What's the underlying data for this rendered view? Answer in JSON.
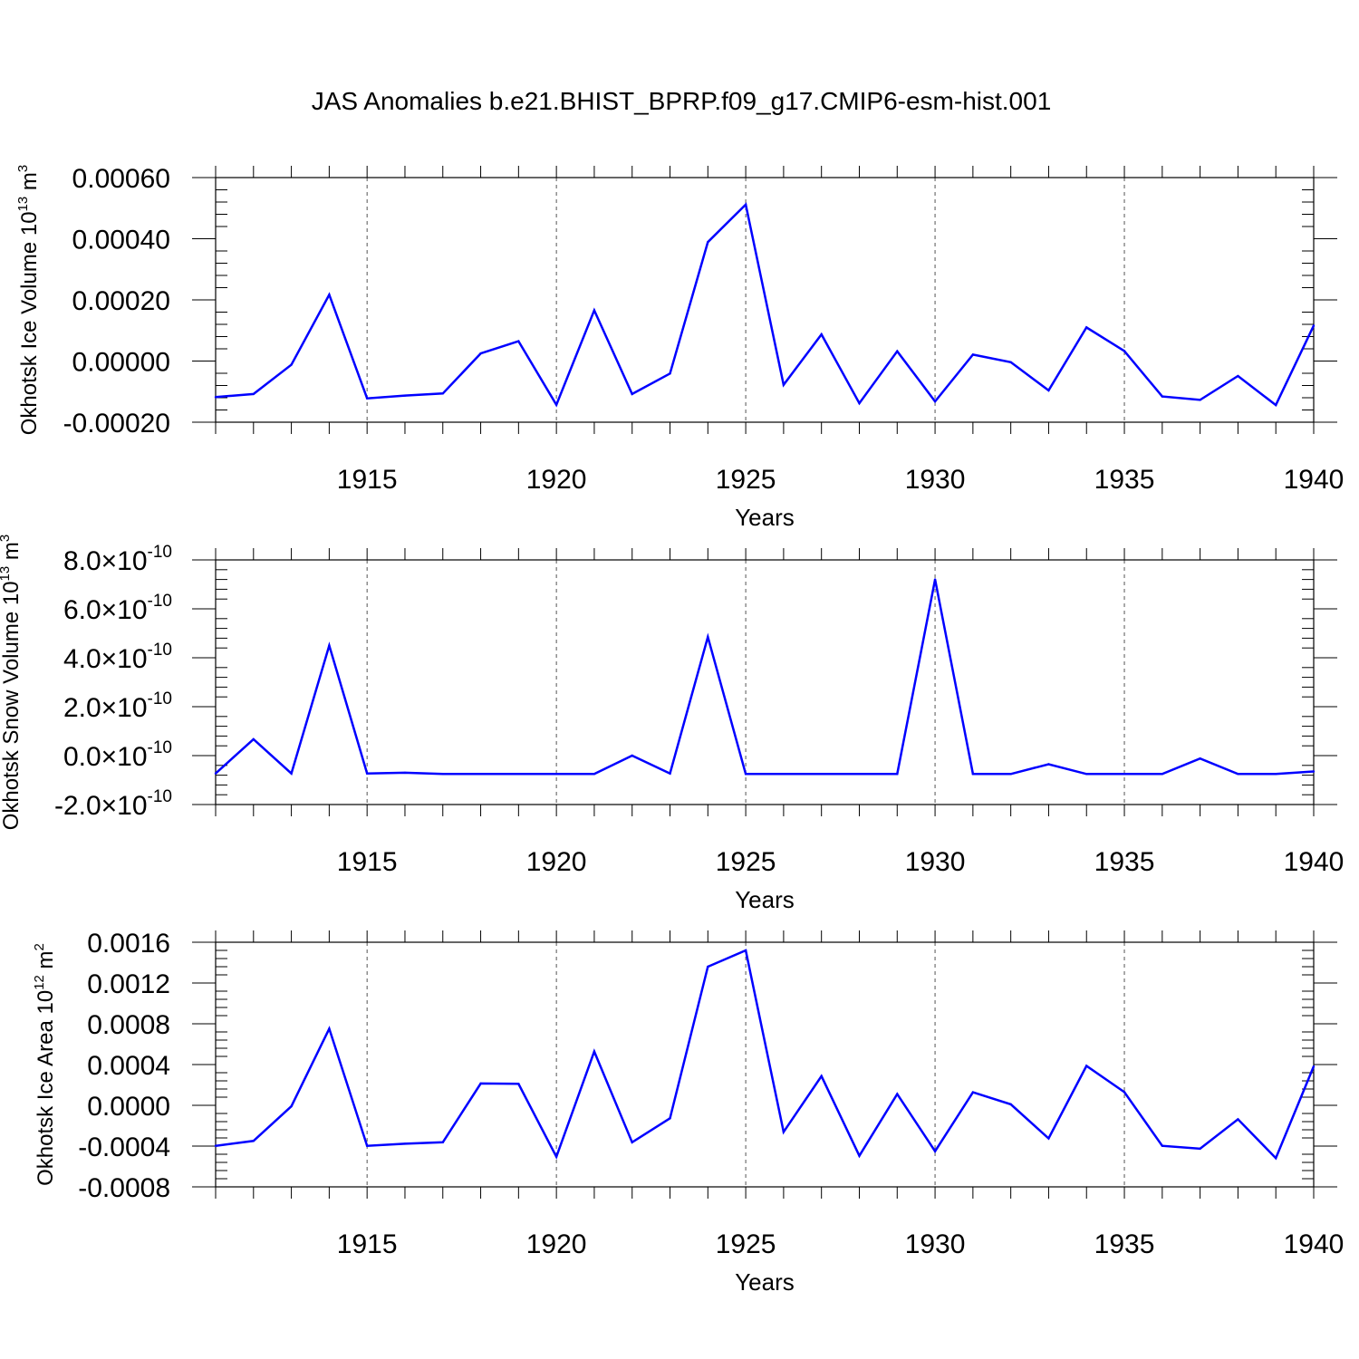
{
  "title": "JAS Anomalies b.e21.BHIST_BPRP.f09_g17.CMIP6-esm-hist.001",
  "chart_data": [
    {
      "type": "line",
      "ylabel": "Okhotsk Ice Volume 10",
      "ylabel_exp": "13",
      "ylabel_unit": " m",
      "ylabel_unit_exp": "3",
      "xlabel": "Years",
      "xlim": [
        1911,
        1940
      ],
      "ylim": [
        -0.0002,
        0.0006
      ],
      "xticks": [
        1915,
        1920,
        1925,
        1930,
        1935,
        1940
      ],
      "xtick_labels": [
        "1915",
        "1920",
        "1925",
        "1930",
        "1935",
        "1940"
      ],
      "yticks": [
        -0.0002,
        0.0,
        0.0002,
        0.0004,
        0.0006
      ],
      "ytick_labels": [
        "-0.00020",
        "0.00000",
        "0.00020",
        "0.00040",
        "0.00060"
      ],
      "grid": "x-dashed",
      "color": "#0000ff",
      "x": [
        1911,
        1912,
        1913,
        1914,
        1915,
        1916,
        1917,
        1918,
        1919,
        1920,
        1921,
        1922,
        1923,
        1924,
        1925,
        1926,
        1927,
        1928,
        1929,
        1930,
        1931,
        1932,
        1933,
        1934,
        1935,
        1936,
        1937,
        1938,
        1939,
        1940
      ],
      "y": [
        -0.000118,
        -0.000108,
        -1.2e-05,
        0.000217,
        -0.000122,
        -0.000113,
        -0.000106,
        2.5e-05,
        6.5e-05,
        -0.000143,
        0.000166,
        -0.000108,
        -4.1e-05,
        0.000389,
        0.000512,
        -7.8e-05,
        8.7e-05,
        -0.000138,
        3.2e-05,
        -0.000132,
        2.1e-05,
        -4e-06,
        -9.6e-05,
        0.00011,
        3.3e-05,
        -0.000116,
        -0.000127,
        -4.9e-05,
        -0.000144,
        0.000116
      ]
    },
    {
      "type": "line",
      "ylabel": "Okhotsk Snow Volume 10",
      "ylabel_exp": "13",
      "ylabel_unit": " m",
      "ylabel_unit_exp": "3",
      "xlabel": "Years",
      "xlim": [
        1911,
        1940
      ],
      "ylim": [
        -2e-10,
        8e-10
      ],
      "xticks": [
        1915,
        1920,
        1925,
        1930,
        1935,
        1940
      ],
      "xtick_labels": [
        "1915",
        "1920",
        "1925",
        "1930",
        "1935",
        "1940"
      ],
      "yticks": [
        -2e-10,
        0.0,
        2e-10,
        4e-10,
        6e-10,
        8e-10
      ],
      "ytick_labels": [
        {
          "mantissa": "-2.0",
          "times": "×10",
          "exp": "-10"
        },
        {
          "mantissa": "0.0",
          "times": "×10",
          "exp": "-10"
        },
        {
          "mantissa": "2.0",
          "times": "×10",
          "exp": "-10"
        },
        {
          "mantissa": "4.0",
          "times": "×10",
          "exp": "-10"
        },
        {
          "mantissa": "6.0",
          "times": "×10",
          "exp": "-10"
        },
        {
          "mantissa": "8.0",
          "times": "×10",
          "exp": "-10"
        }
      ],
      "grid": "x-dashed",
      "color": "#0000ff",
      "x": [
        1911,
        1912,
        1913,
        1914,
        1915,
        1916,
        1917,
        1918,
        1919,
        1920,
        1921,
        1922,
        1923,
        1924,
        1925,
        1926,
        1927,
        1928,
        1929,
        1930,
        1931,
        1932,
        1933,
        1934,
        1935,
        1936,
        1937,
        1938,
        1939,
        1940
      ],
      "y": [
        -7.3e-11,
        6.7e-11,
        -7.3e-11,
        4.5e-10,
        -7.3e-11,
        -7e-11,
        -7.5e-11,
        -7.5e-11,
        -7.5e-11,
        -7.5e-11,
        -7.5e-11,
        0.0,
        -7.3e-11,
        4.85e-10,
        -7.5e-11,
        -7.5e-11,
        -7.5e-11,
        -7.5e-11,
        -7.5e-11,
        7.2e-10,
        -7.5e-11,
        -7.5e-11,
        -3.5e-11,
        -7.5e-11,
        -7.5e-11,
        -7.5e-11,
        -1.2e-11,
        -7.5e-11,
        -7.5e-11,
        -6.5e-11
      ]
    },
    {
      "type": "line",
      "ylabel": "Okhotsk Ice Area 10",
      "ylabel_exp": "12",
      "ylabel_unit": " m",
      "ylabel_unit_exp": "2",
      "xlabel": "Years",
      "xlim": [
        1911,
        1940
      ],
      "ylim": [
        -0.0008,
        0.0016
      ],
      "xticks": [
        1915,
        1920,
        1925,
        1930,
        1935,
        1940
      ],
      "xtick_labels": [
        "1915",
        "1920",
        "1925",
        "1930",
        "1935",
        "1940"
      ],
      "yticks": [
        -0.0008,
        -0.0004,
        0.0,
        0.0004,
        0.0008,
        0.0012,
        0.0016
      ],
      "ytick_labels": [
        "-0.0008",
        "-0.0004",
        "0.0000",
        "0.0004",
        "0.0008",
        "0.0012",
        "0.0016"
      ],
      "grid": "x-dashed",
      "color": "#0000ff",
      "x": [
        1911,
        1912,
        1913,
        1914,
        1915,
        1916,
        1917,
        1918,
        1919,
        1920,
        1921,
        1922,
        1923,
        1924,
        1925,
        1926,
        1927,
        1928,
        1929,
        1930,
        1931,
        1932,
        1933,
        1934,
        1935,
        1936,
        1937,
        1938,
        1939,
        1940
      ],
      "y": [
        -0.000397,
        -0.000349,
        -1e-05,
        0.000752,
        -0.000397,
        -0.000377,
        -0.000363,
        0.000214,
        0.000211,
        -0.000505,
        0.000528,
        -0.000363,
        -0.000127,
        0.00136,
        0.00152,
        -0.000261,
        0.000286,
        -0.000495,
        0.00011,
        -0.000451,
        0.000128,
        1e-05,
        -0.000324,
        0.000387,
        0.00013,
        -0.000397,
        -0.000426,
        -0.000137,
        -0.000518,
        0.000382
      ]
    }
  ]
}
